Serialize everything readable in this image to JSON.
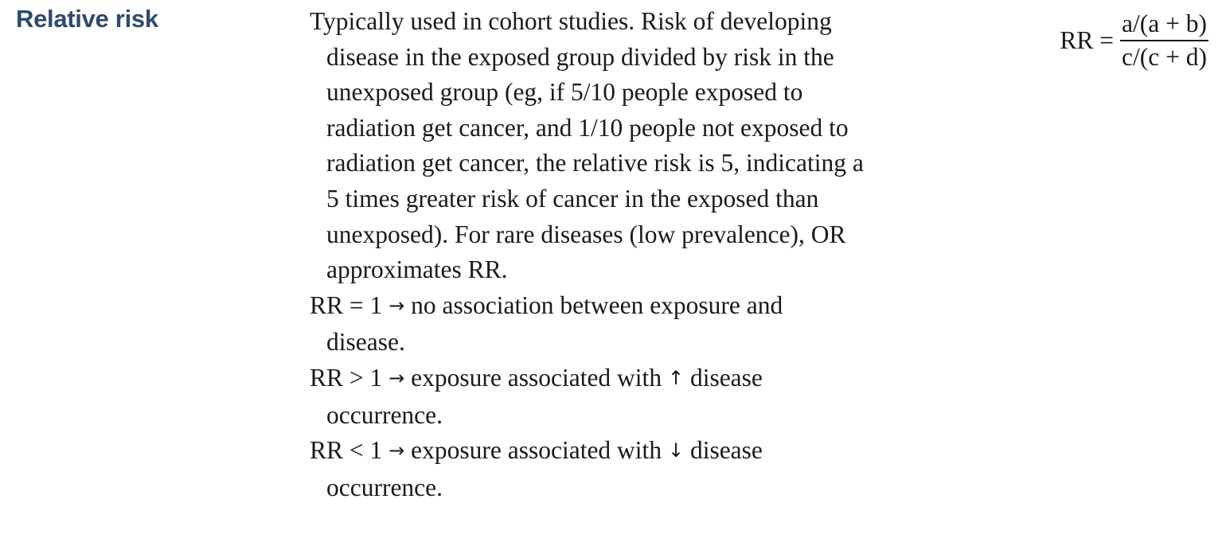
{
  "term": "Relative risk",
  "description": {
    "paragraphs": [
      "Typically used in cohort studies. Risk of developing disease in the exposed group divided by risk in the unexposed group (eg, if 5/10 people exposed to radiation get cancer, and 1/10 people not exposed to radiation get cancer, the relative risk is 5, indicating a 5 times greater risk of cancer in the exposed than unexposed). For rare diseases (low prevalence), OR approximates RR."
    ],
    "rules": [
      {
        "condition": "RR = 1",
        "arrow": "→",
        "result": "no association between exposure and disease."
      },
      {
        "condition": "RR > 1",
        "arrow": "→",
        "result_prefix": "exposure associated with",
        "direction": "↑",
        "result_suffix": "disease occurrence."
      },
      {
        "condition": "RR < 1",
        "arrow": "→",
        "result_prefix": "exposure associated with",
        "direction": "↓",
        "result_suffix": "disease occurrence."
      }
    ]
  },
  "formula": {
    "lhs": "RR =",
    "numerator": "a/(a + b)",
    "denominator": "c/(c + d)"
  }
}
